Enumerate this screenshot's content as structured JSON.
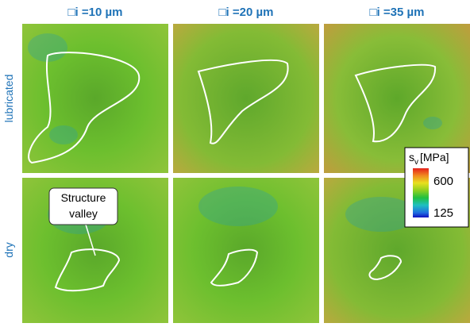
{
  "headers": [
    "□i =10 µm",
    "□i =20 µm",
    "□i =35 µm"
  ],
  "rows": [
    "lubricated",
    "dry"
  ],
  "annotation": [
    "Structure",
    "valley"
  ],
  "colorbar": {
    "symbol": "s",
    "subscript": "v",
    "unit": "[MPa]",
    "ticks": [
      600,
      125
    ]
  }
}
